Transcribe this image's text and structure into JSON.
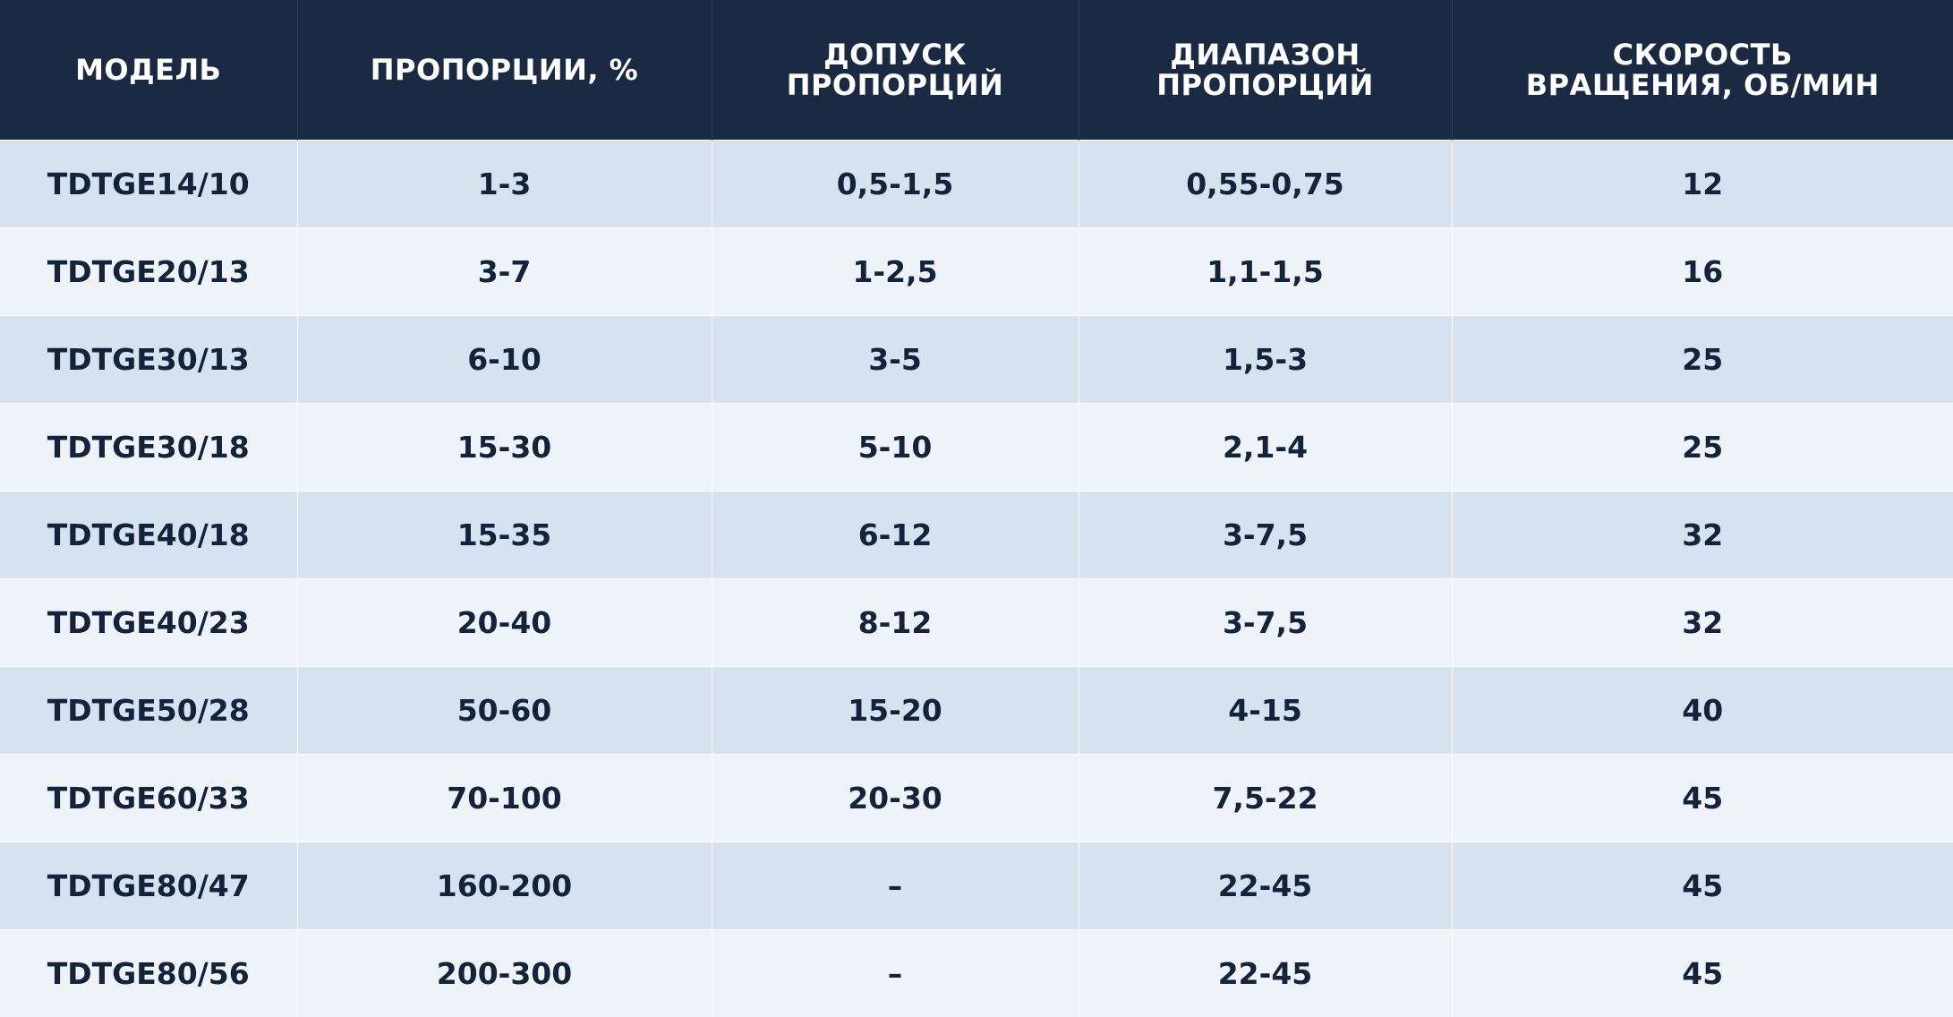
{
  "table": {
    "headers": [
      {
        "line1": "МОДЕЛЬ",
        "line2": ""
      },
      {
        "line1": "ПРОПОРЦИИ, %",
        "line2": ""
      },
      {
        "line1": "ДОПУСК",
        "line2": "ПРОПОРЦИЙ"
      },
      {
        "line1": "ДИАПАЗОН",
        "line2": "ПРОПОРЦИЙ"
      },
      {
        "line1": "СКОРОСТЬ",
        "line2": "ВРАЩЕНИЯ, ОБ/МИН"
      }
    ],
    "rows": [
      [
        "TDTGE14/10",
        "1-3",
        "0,5-1,5",
        "0,55-0,75",
        "12"
      ],
      [
        "TDTGE20/13",
        "3-7",
        "1-2,5",
        "1,1-1,5",
        "16"
      ],
      [
        "TDTGE30/13",
        "6-10",
        "3-5",
        "1,5-3",
        "25"
      ],
      [
        "TDTGE30/18",
        "15-30",
        "5-10",
        "2,1-4",
        "25"
      ],
      [
        "TDTGE40/18",
        "15-35",
        "6-12",
        "3-7,5",
        "32"
      ],
      [
        "TDTGE40/23",
        "20-40",
        "8-12",
        "3-7,5",
        "32"
      ],
      [
        "TDTGE50/28",
        "50-60",
        "15-20",
        "4-15",
        "40"
      ],
      [
        "TDTGE60/33",
        "70-100",
        "20-30",
        "7,5-22",
        "45"
      ],
      [
        "TDTGE80/47",
        "160-200",
        "–",
        "22-45",
        "45"
      ],
      [
        "TDTGE80/56",
        "200-300",
        "–",
        "22-45",
        "45"
      ]
    ]
  },
  "colors": {
    "header_bg": "#1a2a42",
    "header_text": "#ffffff",
    "row_odd_bg": "#d6e2f0",
    "row_even_bg": "#eef3f9",
    "cell_text": "#14233a"
  }
}
